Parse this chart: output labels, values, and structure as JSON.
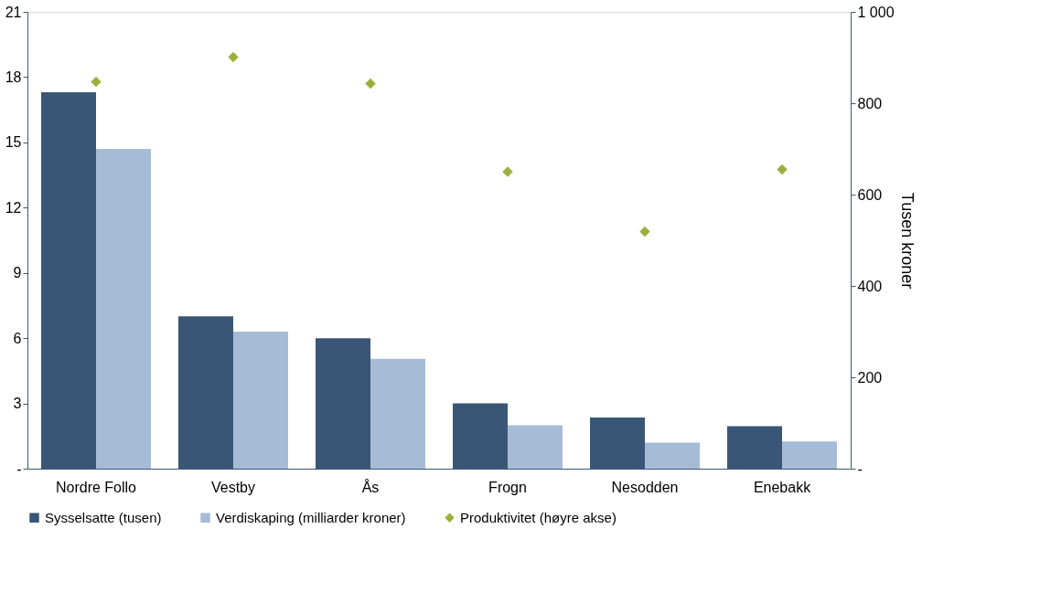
{
  "chart_data": {
    "type": "bar",
    "ylabel": null,
    "y2label": "Tusen kroner",
    "categories": [
      "Nordre Follo",
      "Vestby",
      "Ås",
      "Frogn",
      "Nesodden",
      "Enebakk"
    ],
    "series": [
      {
        "name": "Sysselsatte (tusen)",
        "color": "#3a5676",
        "values": [
          17.3,
          7.0,
          6.0,
          3.0,
          2.35,
          1.95
        ]
      },
      {
        "name": "Verdiskaping (milliarder kroner)",
        "color": "#a6bcd6",
        "values": [
          14.7,
          6.3,
          5.05,
          2.0,
          1.2,
          1.25
        ]
      },
      {
        "name": "Produktivitet (høyre akse)",
        "color": "#9bb03b",
        "type": "scatter",
        "axis": "y2",
        "marker": "diamond",
        "values": [
          847,
          901,
          843,
          650,
          519,
          655
        ]
      }
    ],
    "ylim": [
      0,
      21
    ],
    "yticks": [
      {
        "value": 0,
        "label": "-"
      },
      3,
      6,
      9,
      12,
      15,
      18,
      21
    ],
    "y2lim": [
      0,
      1000
    ],
    "y2ticks": [
      {
        "value": 0,
        "label": "-"
      },
      200,
      400,
      600,
      800,
      {
        "value": 1000,
        "label": "1 000"
      }
    ],
    "grid": false,
    "legend": "bottom"
  }
}
